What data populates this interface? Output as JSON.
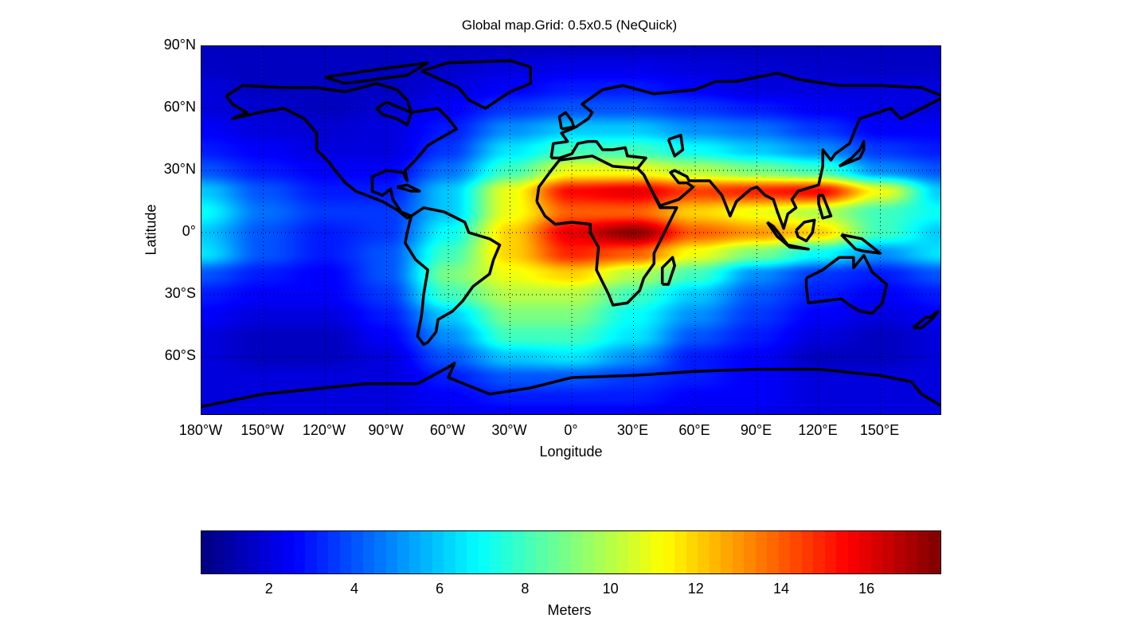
{
  "title": "Global map.Grid: 0.5x0.5 (NeQuick)",
  "chart_data": {
    "type": "heatmap",
    "title": "Global map.Grid: 0.5x0.5 (NeQuick)",
    "xlabel": "Longitude",
    "ylabel": "Latitude",
    "xlim": [
      -180,
      180
    ],
    "ylim": [
      -90,
      90
    ],
    "grid": true,
    "colormap": "jet",
    "x_ticks": [
      -180,
      -150,
      -120,
      -90,
      -60,
      -30,
      0,
      30,
      60,
      90,
      120,
      150
    ],
    "x_tick_labels": [
      "180°W",
      "150°W",
      "120°W",
      "90°W",
      "60°W",
      "30°W",
      "0°",
      "30°E",
      "60°E",
      "90°E",
      "120°E",
      "150°E"
    ],
    "y_ticks": [
      90,
      60,
      30,
      0,
      -30,
      -60
    ],
    "y_tick_labels": [
      "90°N",
      "60°N",
      "30°N",
      "0°",
      "30°S",
      "60°S"
    ],
    "grid_lon": [
      -180,
      -150,
      -120,
      -90,
      -60,
      -30,
      0,
      30,
      60,
      90,
      120,
      150,
      180
    ],
    "grid_lat": [
      90,
      80,
      70,
      60,
      50,
      40,
      30,
      20,
      10,
      0,
      -10,
      -20,
      -30,
      -40,
      -50,
      -60,
      -70,
      -80,
      -90
    ],
    "values": [
      [
        1.5,
        1.5,
        1.5,
        1.5,
        1.5,
        1.5,
        1.5,
        1.5,
        1.5,
        1.5,
        1.5,
        1.5,
        1.5
      ],
      [
        1.6,
        1.5,
        1.5,
        1.5,
        1.7,
        2,
        2.2,
        2.2,
        2,
        1.8,
        1.7,
        1.6,
        1.6
      ],
      [
        2,
        1.5,
        1.5,
        1.5,
        2,
        2.5,
        3,
        3,
        2.5,
        2,
        2,
        2,
        2
      ],
      [
        2,
        1.8,
        1.5,
        1.8,
        2.5,
        3.5,
        4,
        4,
        3.5,
        3,
        2.5,
        2.2,
        2
      ],
      [
        2.5,
        2,
        1.8,
        2,
        3,
        5,
        6,
        6,
        5,
        4.5,
        3.5,
        2.5,
        2.5
      ],
      [
        3,
        2.5,
        2,
        2,
        3.5,
        6.5,
        8,
        8,
        7,
        6,
        5,
        3.5,
        3
      ],
      [
        4,
        3,
        2.5,
        2.5,
        4.5,
        8,
        11,
        11,
        10,
        9,
        8,
        5,
        4
      ],
      [
        6,
        4,
        3,
        3,
        6,
        11,
        15.5,
        16,
        14.5,
        15,
        15.5,
        11,
        6
      ],
      [
        7,
        4.5,
        3.5,
        3.5,
        6,
        11,
        14,
        14,
        12,
        11,
        10,
        8,
        7
      ],
      [
        6,
        4,
        3,
        3.5,
        7,
        12,
        16,
        17.5,
        14,
        13,
        12,
        8,
        6
      ],
      [
        6.5,
        4,
        3,
        4,
        8,
        12,
        15,
        14,
        11,
        9,
        7,
        5,
        6.5
      ],
      [
        4,
        3,
        2.5,
        4,
        9,
        11,
        12,
        10,
        8,
        5,
        3.5,
        3,
        4
      ],
      [
        3,
        2.5,
        2.5,
        3.5,
        8,
        10,
        10,
        8,
        6,
        4,
        3,
        2.5,
        3
      ],
      [
        2.5,
        2,
        2,
        3,
        6,
        9,
        9,
        7,
        5,
        3.5,
        2.5,
        2,
        2.5
      ],
      [
        2,
        1.5,
        1.5,
        2.5,
        5,
        8,
        8,
        6.5,
        4,
        3,
        2,
        1.5,
        2
      ],
      [
        2,
        1.5,
        1.5,
        2,
        4,
        6,
        6.5,
        5,
        3,
        2.5,
        1.5,
        1.5,
        2
      ],
      [
        2,
        2,
        2,
        2,
        3,
        4,
        4,
        3.5,
        3,
        2.5,
        2,
        2,
        2
      ],
      [
        2,
        2,
        2,
        2,
        2.5,
        3,
        3,
        3,
        2.5,
        2.5,
        2,
        2,
        2
      ],
      [
        2,
        2,
        2,
        2,
        2,
        2,
        2,
        2,
        2,
        2,
        2,
        2,
        2
      ]
    ],
    "colorbar": {
      "label": "Meters",
      "range": [
        0.4,
        17.75
      ],
      "ticks": [
        2,
        4,
        6,
        8,
        10,
        12,
        14,
        16
      ],
      "tick_labels": [
        "2",
        "4",
        "6",
        "8",
        "10",
        "12",
        "14",
        "16"
      ]
    }
  }
}
